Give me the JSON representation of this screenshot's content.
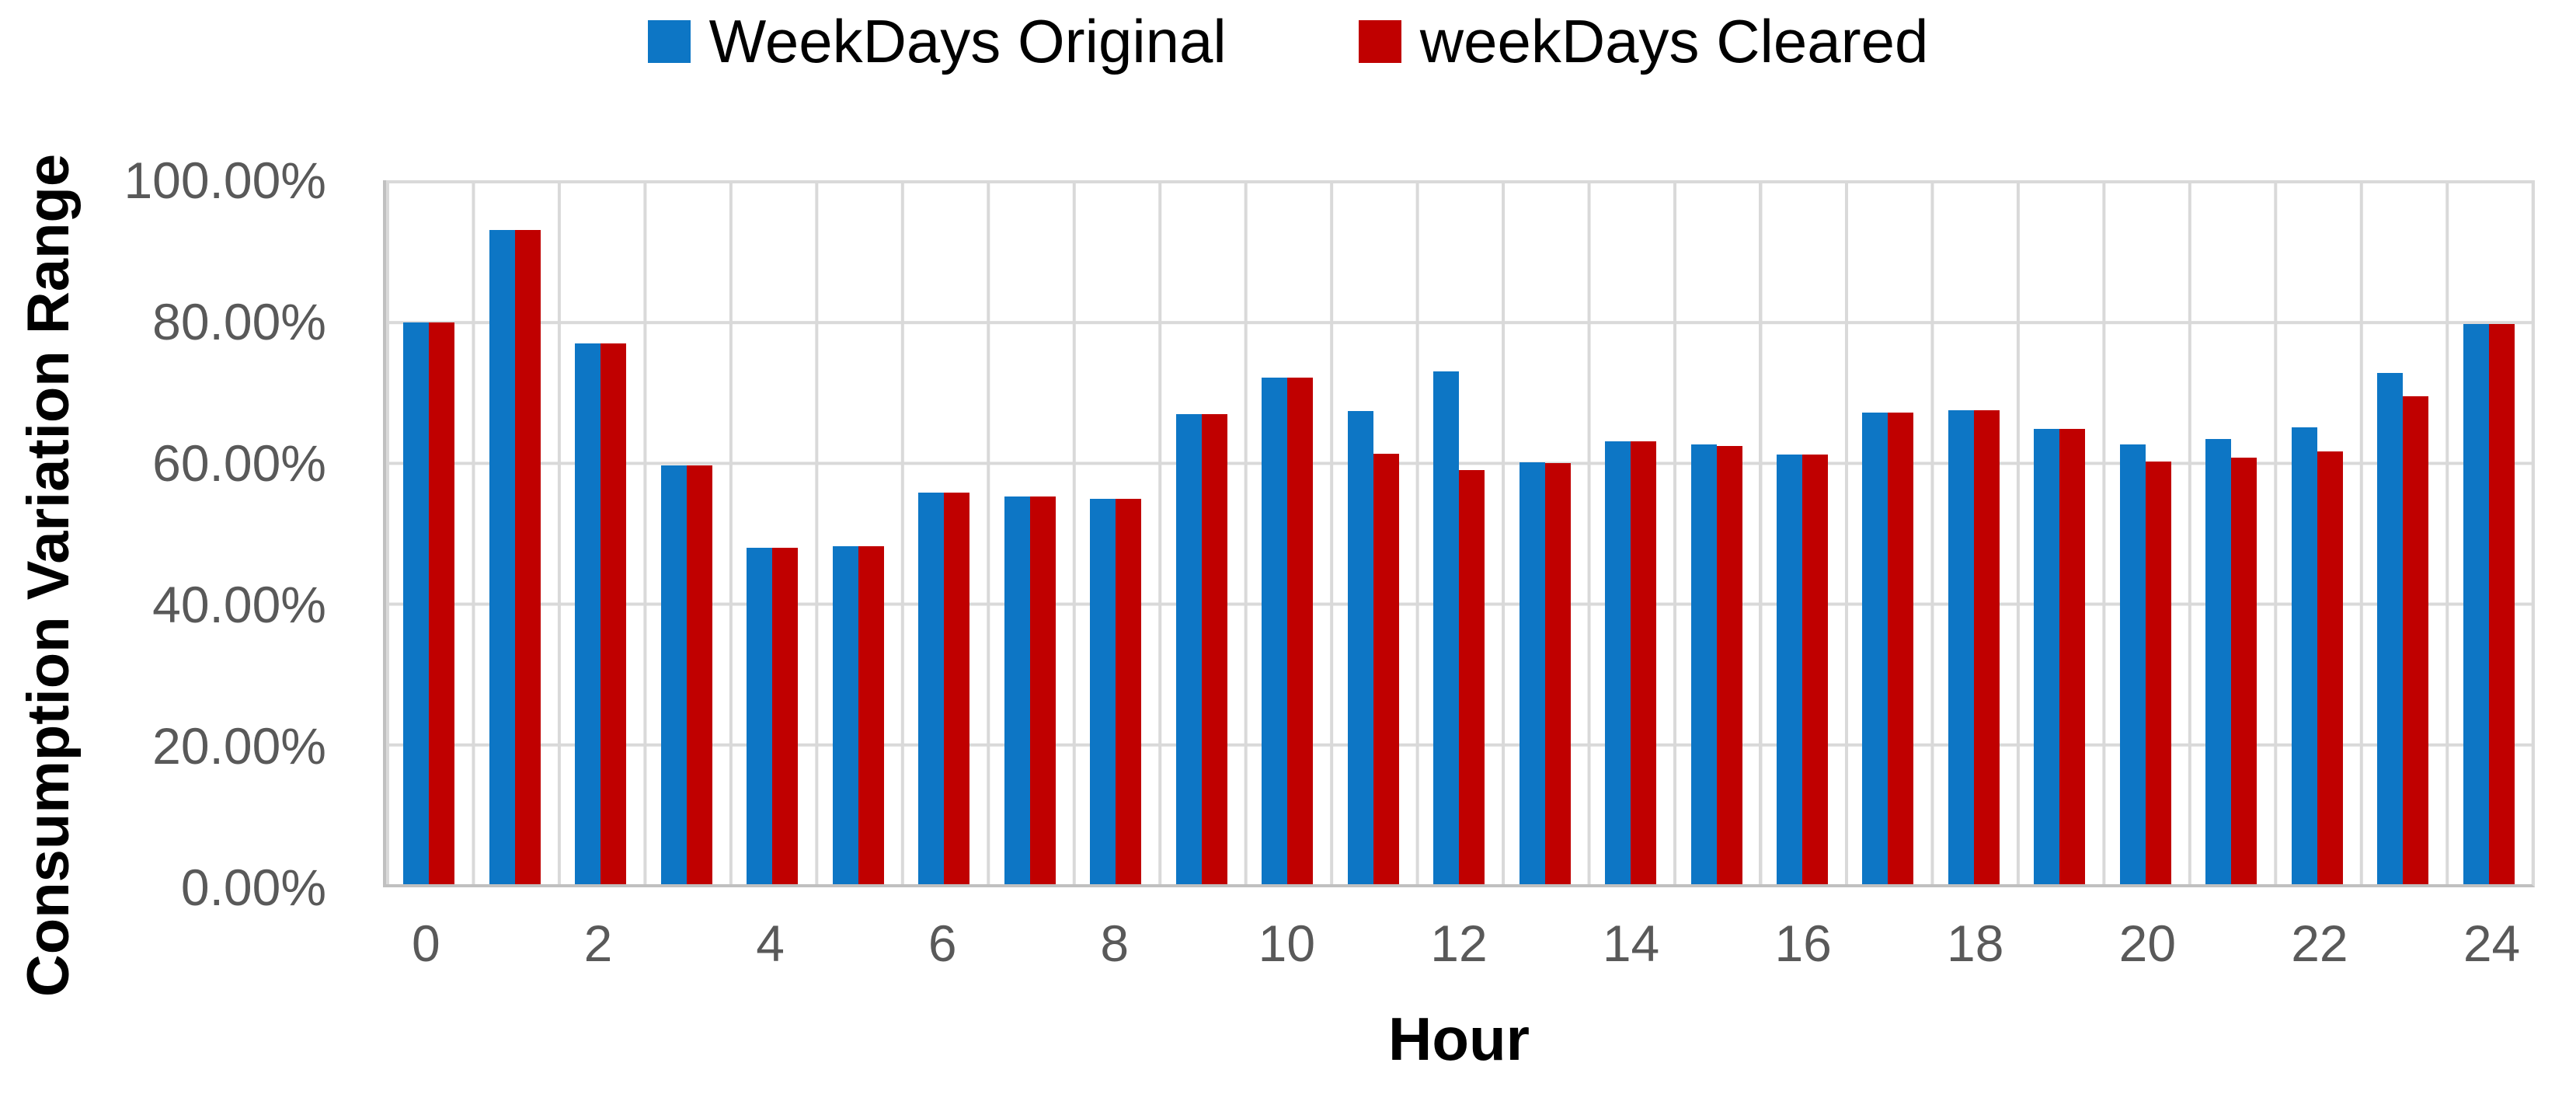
{
  "colors": {
    "background": "#FFFFFF",
    "gridline": "#D9D9D9",
    "axis_line": "#C0C0C0",
    "tick_text": "#595959",
    "title_text": "#000000",
    "series_blue": "#0D76C5",
    "series_red": "#C00000"
  },
  "chart_data": {
    "type": "bar",
    "title": "",
    "xlabel": "Hour",
    "ylabel": "Consumption Variation Range",
    "ylim": [
      0,
      100
    ],
    "grid": true,
    "legend_position": "top-center",
    "categories": [
      0,
      1,
      2,
      3,
      4,
      5,
      6,
      7,
      8,
      9,
      10,
      11,
      12,
      13,
      14,
      15,
      16,
      17,
      18,
      19,
      20,
      21,
      22,
      23,
      24
    ],
    "x_tick_step": 2,
    "y_ticks": [
      "100.00%",
      "80.00%",
      "60.00%",
      "40.00%",
      "20.00%",
      "0.00%"
    ],
    "series": [
      {
        "name": "WeekDays Original",
        "color": "#0D76C5",
        "values": [
          79.8,
          92.9,
          76.8,
          59.5,
          47.8,
          48.0,
          55.6,
          55.1,
          54.7,
          66.8,
          72.0,
          67.2,
          72.9,
          59.9,
          62.9,
          62.5,
          61.0,
          67.0,
          67.3,
          64.7,
          62.5,
          63.2,
          64.9,
          72.6,
          79.6
        ]
      },
      {
        "name": "weekDays Cleared",
        "color": "#C00000",
        "values": [
          79.8,
          92.9,
          76.8,
          59.5,
          47.8,
          48.0,
          55.6,
          55.1,
          54.7,
          66.8,
          72.0,
          61.1,
          58.8,
          59.8,
          62.9,
          62.3,
          61.0,
          67.0,
          67.3,
          64.7,
          60.0,
          60.6,
          61.5,
          69.3,
          79.6
        ]
      }
    ]
  }
}
